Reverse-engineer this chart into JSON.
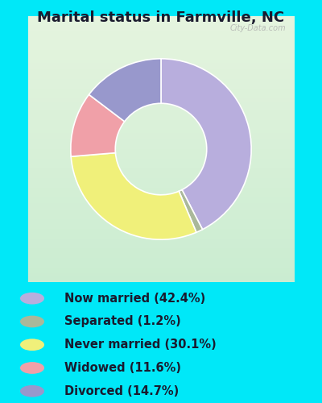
{
  "title": "Marital status in Farmville, NC",
  "title_fontsize": 13,
  "title_color": "#1a1a2e",
  "outer_bg": "#00e8f8",
  "chart_bg_colors": [
    "#e8f5e0",
    "#c8ecd8"
  ],
  "slices": [
    42.4,
    1.2,
    30.1,
    11.6,
    14.7
  ],
  "colors": [
    "#b8aedd",
    "#aab89a",
    "#f0f07a",
    "#f0a0a8",
    "#9898cc"
  ],
  "labels": [
    "Now married (42.4%)",
    "Separated (1.2%)",
    "Never married (30.1%)",
    "Widowed (11.6%)",
    "Divorced (14.7%)"
  ],
  "legend_colors": [
    "#b8aedd",
    "#aab89a",
    "#f0f07a",
    "#f0a0a8",
    "#9898cc"
  ],
  "legend_text_color": "#1a1a2e",
  "legend_fontsize": 10.5,
  "start_angle": 90,
  "donut_width": 0.42,
  "watermark": "City-Data.com"
}
